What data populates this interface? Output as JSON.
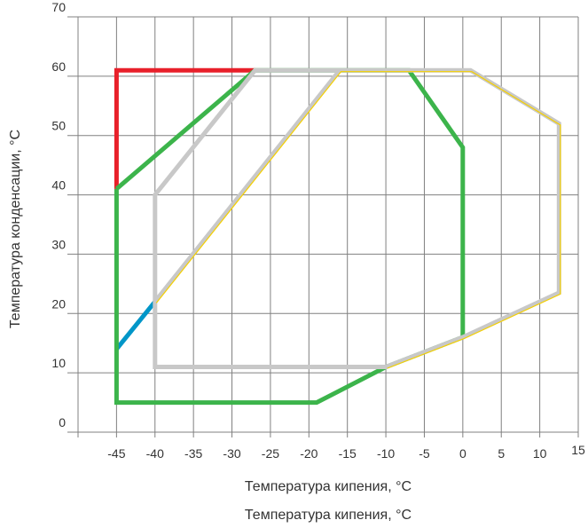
{
  "chart_data": {
    "type": "line",
    "title": "",
    "xlabel": "Температура кипения, °C",
    "xlabel_repeat": "Температура кипения, °C",
    "ylabel": "Температура конденсации, °C",
    "xlim": [
      -50,
      15
    ],
    "ylim": [
      0,
      70
    ],
    "grid": true,
    "x_ticks": [
      "-45",
      "-40",
      "-35",
      "-30",
      "-25",
      "-20",
      "-15",
      "-10",
      "-5",
      "0",
      "5",
      "10",
      "15"
    ],
    "y_ticks": [
      "0",
      "10",
      "20",
      "30",
      "40",
      "50",
      "60",
      "70"
    ],
    "colors": {
      "red": "#e8202a",
      "blue": "#0096c8",
      "green": "#3cb44b",
      "gray": "#c8c8c8",
      "yellow": "#f5d000",
      "grid": "#808080"
    },
    "series": [
      {
        "color": "red",
        "points": [
          [
            -45,
            41
          ],
          [
            -45,
            61
          ],
          [
            -27,
            61
          ]
        ]
      },
      {
        "color": "blue",
        "points": [
          [
            -45,
            14
          ],
          [
            -40,
            22
          ]
        ]
      },
      {
        "color": "green",
        "points": [
          [
            -45,
            41
          ],
          [
            -45,
            5
          ],
          [
            -19,
            5
          ],
          [
            -10,
            11
          ],
          [
            0,
            16
          ],
          [
            0,
            48
          ],
          [
            -7,
            61
          ],
          [
            -27,
            61
          ],
          [
            -45,
            41
          ]
        ]
      },
      {
        "color": "yellow",
        "points": [
          [
            -40,
            22
          ],
          [
            -16,
            61
          ],
          [
            1,
            61
          ],
          [
            12.5,
            52
          ],
          [
            12.5,
            23.5
          ],
          [
            0,
            16
          ],
          [
            -10,
            11
          ]
        ]
      },
      {
        "color": "gray",
        "points": [
          [
            -40,
            11
          ],
          [
            -40,
            40
          ],
          [
            -27,
            61
          ],
          [
            1,
            61
          ],
          [
            12.5,
            52
          ],
          [
            12.5,
            23.5
          ],
          [
            0,
            16
          ],
          [
            -10,
            11
          ],
          [
            -40,
            11
          ],
          [
            -40,
            22
          ],
          [
            -16,
            61
          ]
        ]
      }
    ]
  }
}
